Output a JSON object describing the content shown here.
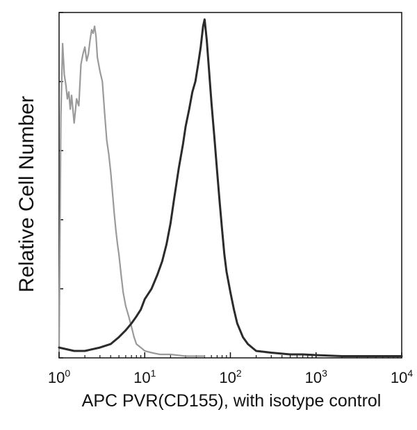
{
  "chart_data": {
    "type": "line",
    "title": "",
    "xlabel": "APC PVR(CD155), with isotype control",
    "ylabel": "Relative Cell Number",
    "x_scale": "log",
    "xlim": [
      1,
      10000
    ],
    "ylim": [
      0,
      100
    ],
    "x_ticks": [
      {
        "base": "10",
        "exp": "0",
        "value": 1
      },
      {
        "base": "10",
        "exp": "1",
        "value": 10
      },
      {
        "base": "10",
        "exp": "2",
        "value": 100
      },
      {
        "base": "10",
        "exp": "3",
        "value": 1000
      },
      {
        "base": "10",
        "exp": "4",
        "value": 10000
      }
    ],
    "grid": false,
    "legend": "none",
    "series": [
      {
        "color": "#9a9a9a",
        "stroke": 2.2,
        "x": [
          1.0,
          1.05,
          1.1,
          1.15,
          1.2,
          1.25,
          1.3,
          1.35,
          1.4,
          1.5,
          1.6,
          1.7,
          1.8,
          1.9,
          2.0,
          2.1,
          2.2,
          2.3,
          2.4,
          2.5,
          2.6,
          2.7,
          2.8,
          3.0,
          3.2,
          3.4,
          3.6,
          3.8,
          4.0,
          4.2,
          4.4,
          4.6,
          4.8,
          5.0,
          5.3,
          5.6,
          6.0,
          6.5,
          7.0,
          7.5,
          8.0,
          9.0,
          10.0,
          12.0,
          15.0,
          20.0,
          30.0,
          50.0
        ],
        "y": [
          2,
          70,
          91,
          82,
          79,
          75,
          77,
          72,
          76,
          68,
          75,
          73,
          85,
          88,
          90,
          86,
          88,
          92,
          95,
          94,
          96,
          93,
          87,
          83,
          80,
          71,
          63,
          59,
          54,
          48,
          42,
          37,
          33,
          30,
          24,
          19,
          15,
          12,
          9,
          6,
          4,
          3,
          2,
          1.5,
          1,
          1,
          0.5,
          0.5
        ]
      },
      {
        "color": "#2b2b2b",
        "stroke": 3.0,
        "x": [
          1.0,
          1.5,
          2.0,
          3.0,
          4.0,
          5.0,
          6.0,
          7.0,
          8.0,
          9.0,
          10.0,
          12.0,
          14.0,
          16.0,
          18.0,
          20.0,
          22.0,
          25.0,
          28.0,
          30.0,
          33.0,
          36.0,
          39.0,
          42.0,
          45.0,
          48.0,
          50.0,
          53.0,
          56.0,
          60.0,
          65.0,
          70.0,
          75.0,
          80.0,
          85.0,
          90.0,
          100,
          110,
          120,
          140,
          160,
          200,
          300,
          500,
          700,
          1000,
          2000,
          5000,
          10000
        ],
        "y": [
          3,
          2,
          2,
          3,
          4,
          6,
          8,
          10,
          12,
          14,
          17,
          20,
          24,
          28,
          33,
          39,
          46,
          55,
          62,
          67,
          72,
          77,
          80,
          85,
          90,
          96,
          98,
          92,
          84,
          74,
          64,
          54,
          45,
          37,
          30,
          25,
          19,
          14,
          10,
          6,
          4,
          2,
          1.5,
          1,
          1,
          0.8,
          0.5,
          0.5,
          0.5
        ]
      }
    ]
  }
}
